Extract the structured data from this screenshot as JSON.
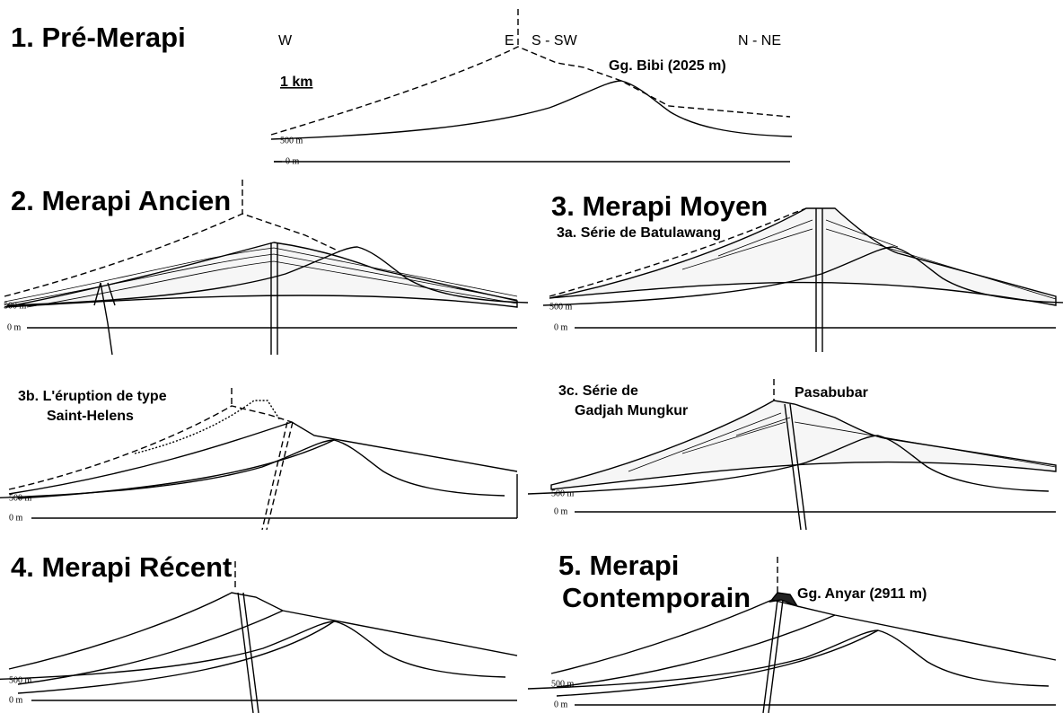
{
  "panels": [
    {
      "title": "1. Pré-Merapi",
      "directions": [
        "W",
        "E",
        "S - SW",
        "N - NE"
      ],
      "scale": "1 km",
      "peak_label": "Gg. Bibi (2025 m)",
      "elevations": [
        "500 m",
        "0 m"
      ]
    },
    {
      "title": "2. Merapi Ancien",
      "elevations": [
        "500 m",
        "0 m"
      ]
    },
    {
      "title": "3. Merapi Moyen",
      "subtitle": "3a. Série de Batulawang",
      "elevations": [
        "500 m",
        "0 m"
      ]
    },
    {
      "subtitle": [
        "3b. L'éruption de type",
        "Saint-Helens"
      ],
      "elevations": [
        "500 m",
        "0 m"
      ]
    },
    {
      "subtitle": [
        "3c. Série de",
        "Gadjah Mungkur"
      ],
      "peak_label": "Pasabubar",
      "elevations": [
        "500 m",
        "0 m"
      ]
    },
    {
      "title": "4. Merapi Récent",
      "elevations": [
        "500 m",
        "0 m"
      ]
    },
    {
      "title": [
        "5. Merapi",
        "Contemporain"
      ],
      "peak_label": "Gg. Anyar (2911 m)",
      "elevations": [
        "500 m",
        "0 m"
      ]
    }
  ]
}
